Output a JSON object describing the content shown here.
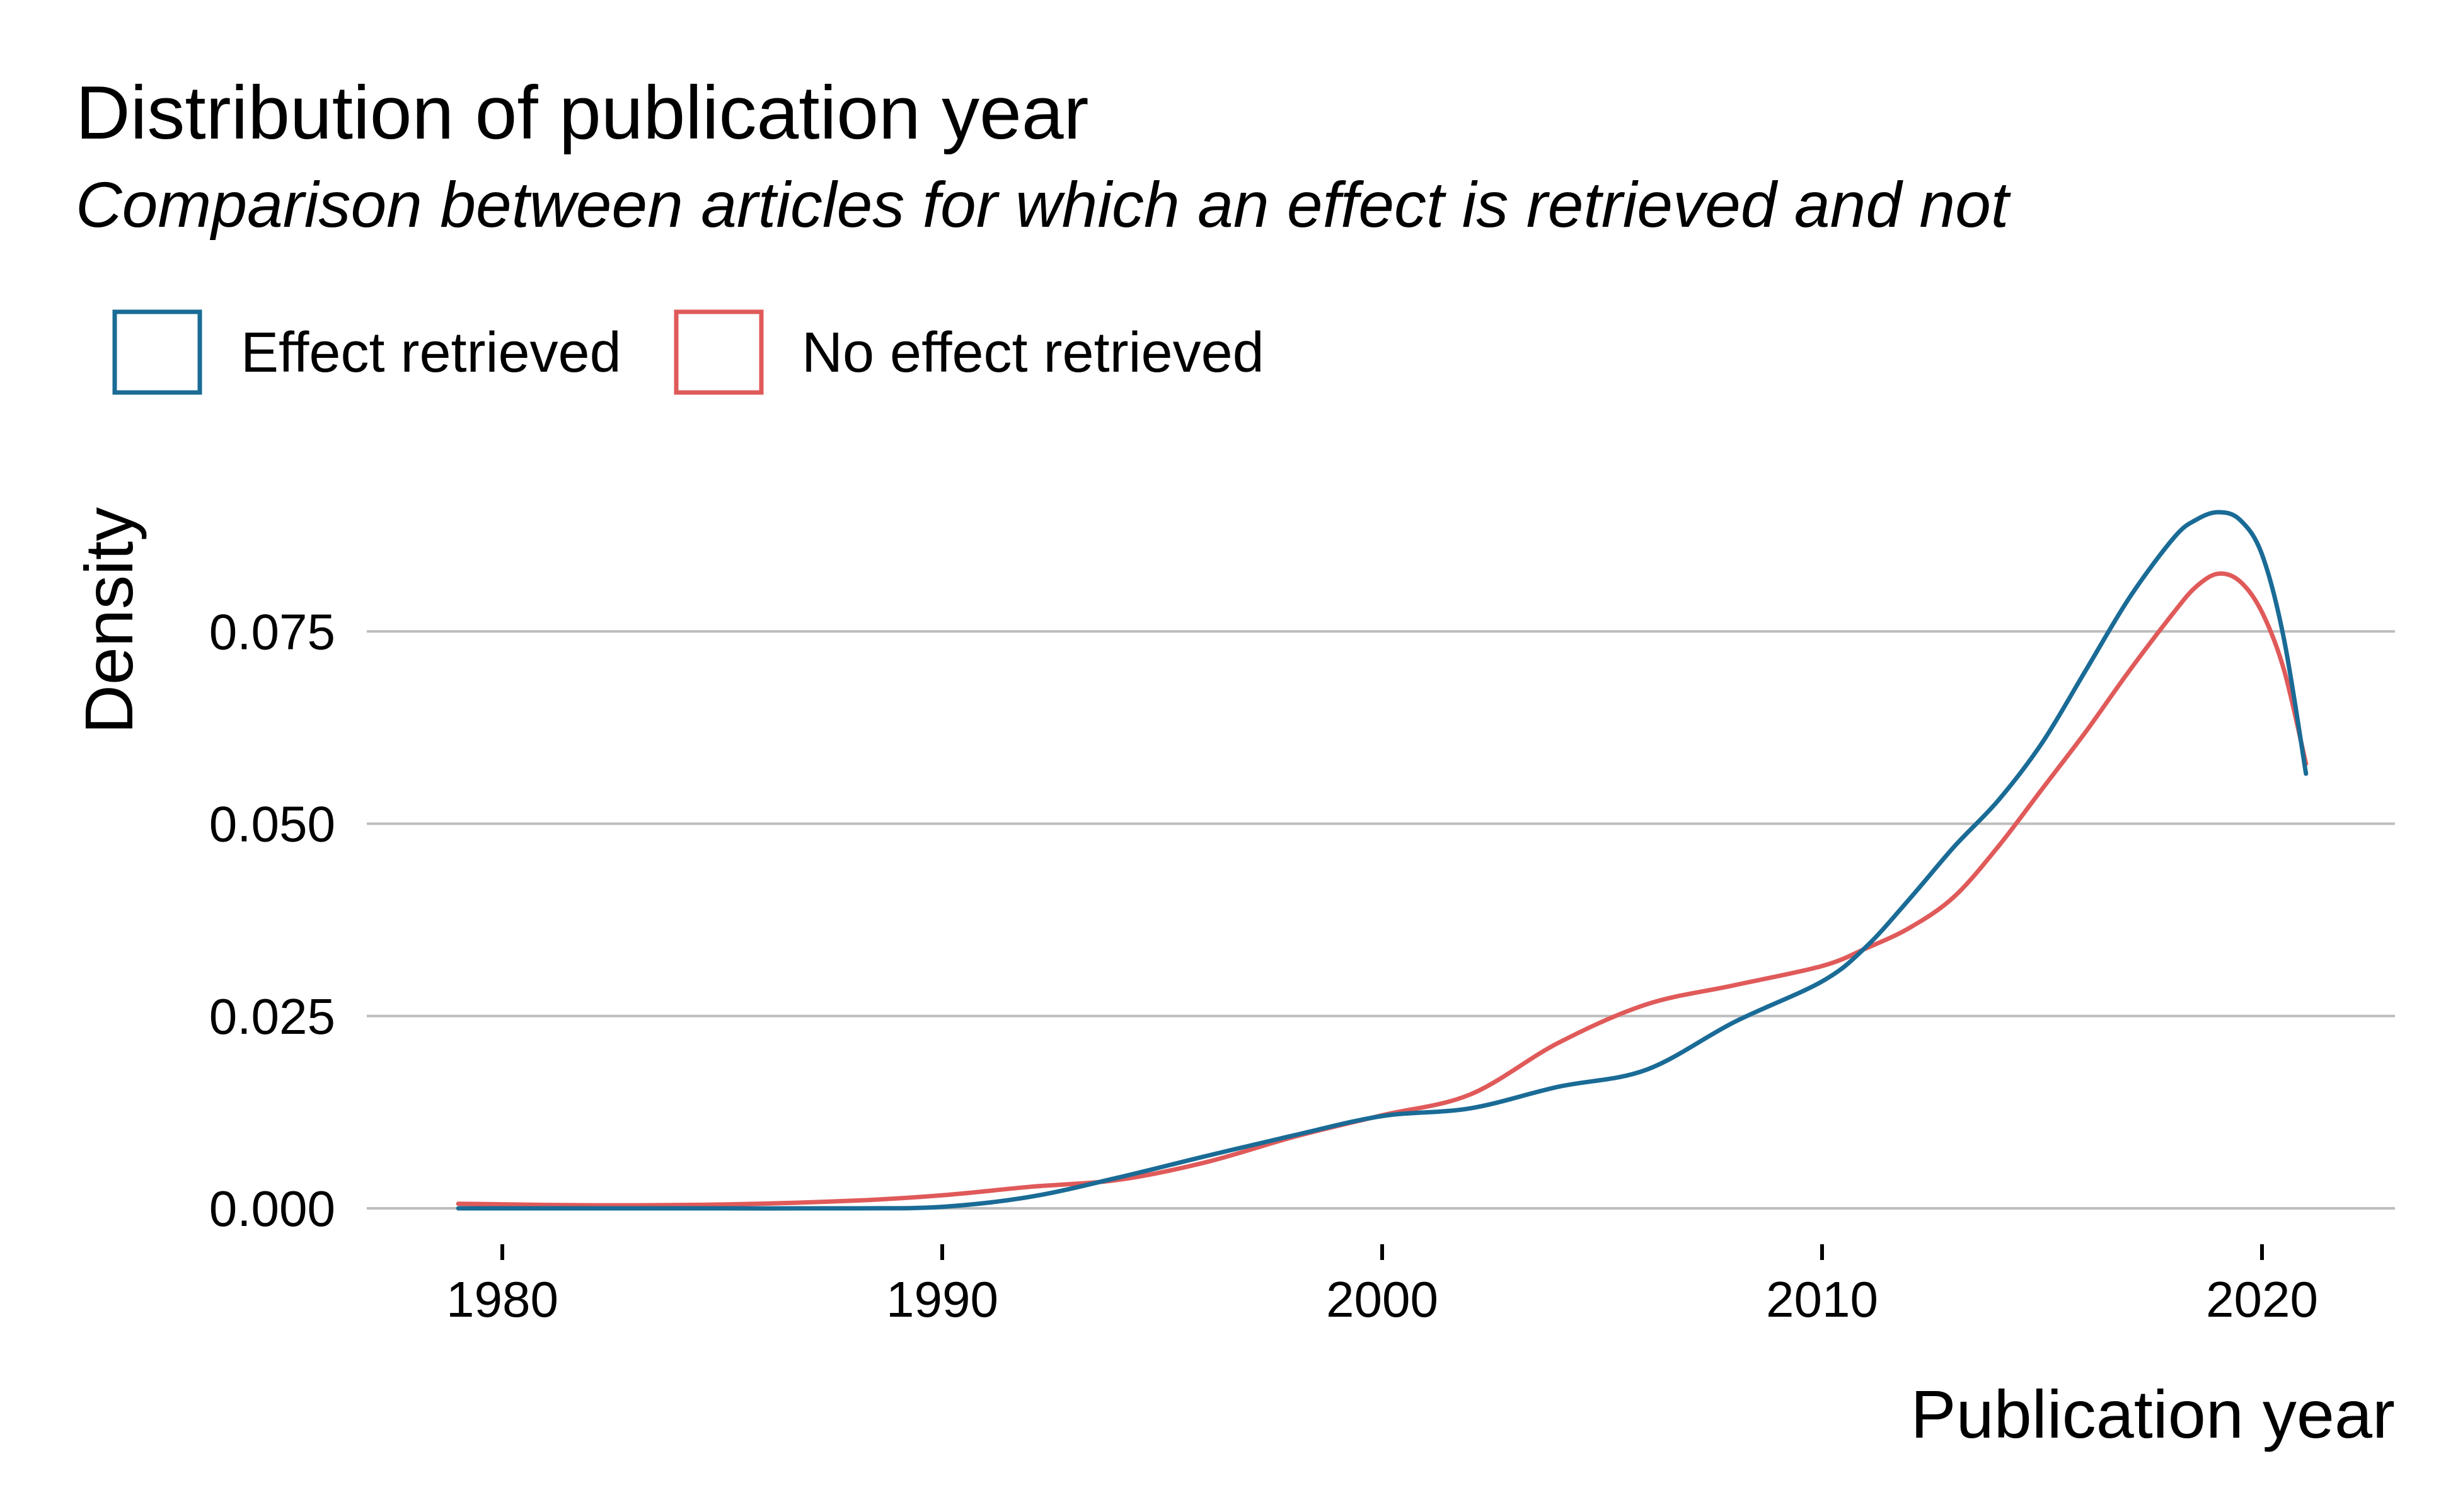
{
  "chart_data": {
    "type": "line",
    "title": "Distribution of publication year",
    "subtitle": "Comparison between articles for which an effect is retrieved and not",
    "xlabel": "Publication year",
    "ylabel": "Density",
    "xlim": [
      1979,
      2021
    ],
    "ylim": [
      0,
      0.092
    ],
    "x_ticks": [
      1980,
      1990,
      2000,
      2010,
      2020
    ],
    "y_ticks": [
      0.0,
      0.025,
      0.05,
      0.075
    ],
    "y_tick_labels": [
      "0.000",
      "0.025",
      "0.050",
      "0.075"
    ],
    "grid": "horizontal",
    "legend_position": "top-left",
    "series": [
      {
        "name": "Effect retrieved",
        "color": "#1a6b96",
        "x": [
          1979,
          1982,
          1985,
          1988,
          1990,
          1992,
          1994,
          1996,
          1998,
          2000,
          2002,
          2004,
          2006,
          2008,
          2010,
          2011,
          2012,
          2013,
          2014,
          2015,
          2016,
          2017,
          2018,
          2018.5,
          2019,
          2019.5,
          2020,
          2020.5,
          2021
        ],
        "y": [
          0.0,
          0.0,
          0.0,
          0.0,
          0.0002,
          0.0015,
          0.004,
          0.0068,
          0.0095,
          0.012,
          0.013,
          0.0158,
          0.018,
          0.0242,
          0.0295,
          0.034,
          0.0403,
          0.047,
          0.053,
          0.0605,
          0.07,
          0.0795,
          0.0872,
          0.0895,
          0.0905,
          0.0895,
          0.085,
          0.074,
          0.0565
        ]
      },
      {
        "name": "No effect retrieved",
        "color": "#e05a5a",
        "x": [
          1979,
          1982,
          1985,
          1988,
          1990,
          1992,
          1994,
          1996,
          1998,
          2000,
          2002,
          2004,
          2006,
          2008,
          2010,
          2011,
          2012,
          2013,
          2014,
          2015,
          2016,
          2017,
          2018,
          2018.5,
          2019,
          2019.5,
          2020,
          2020.5,
          2021
        ],
        "y": [
          0.0006,
          0.0004,
          0.0005,
          0.001,
          0.0017,
          0.0028,
          0.0037,
          0.006,
          0.0093,
          0.0121,
          0.0148,
          0.0215,
          0.0265,
          0.029,
          0.0315,
          0.0338,
          0.0365,
          0.0405,
          0.047,
          0.0545,
          0.062,
          0.07,
          0.0775,
          0.0808,
          0.0825,
          0.0815,
          0.0775,
          0.07,
          0.0578
        ]
      }
    ]
  }
}
